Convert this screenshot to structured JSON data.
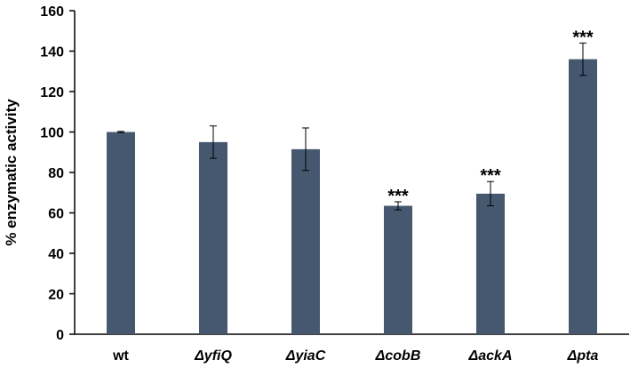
{
  "chart_data": {
    "type": "bar",
    "title": "",
    "xlabel": "",
    "ylabel": "% enzymatic activity",
    "ylim": [
      0,
      160
    ],
    "yticks": [
      0,
      20,
      40,
      60,
      80,
      100,
      120,
      140,
      160
    ],
    "grid": false,
    "categories": [
      "wt",
      "ΔyfiQ",
      "ΔyiaC",
      "ΔcobB",
      "ΔackA",
      "Δpta"
    ],
    "italic_categories": [
      false,
      true,
      true,
      true,
      true,
      true
    ],
    "values": [
      100,
      95,
      91.5,
      63.5,
      69.5,
      136
    ],
    "errors": [
      0.3,
      8,
      10.5,
      2,
      6,
      8
    ],
    "significance": [
      "",
      "",
      "",
      "***",
      "***",
      "***"
    ],
    "bar_color": "#465870"
  }
}
